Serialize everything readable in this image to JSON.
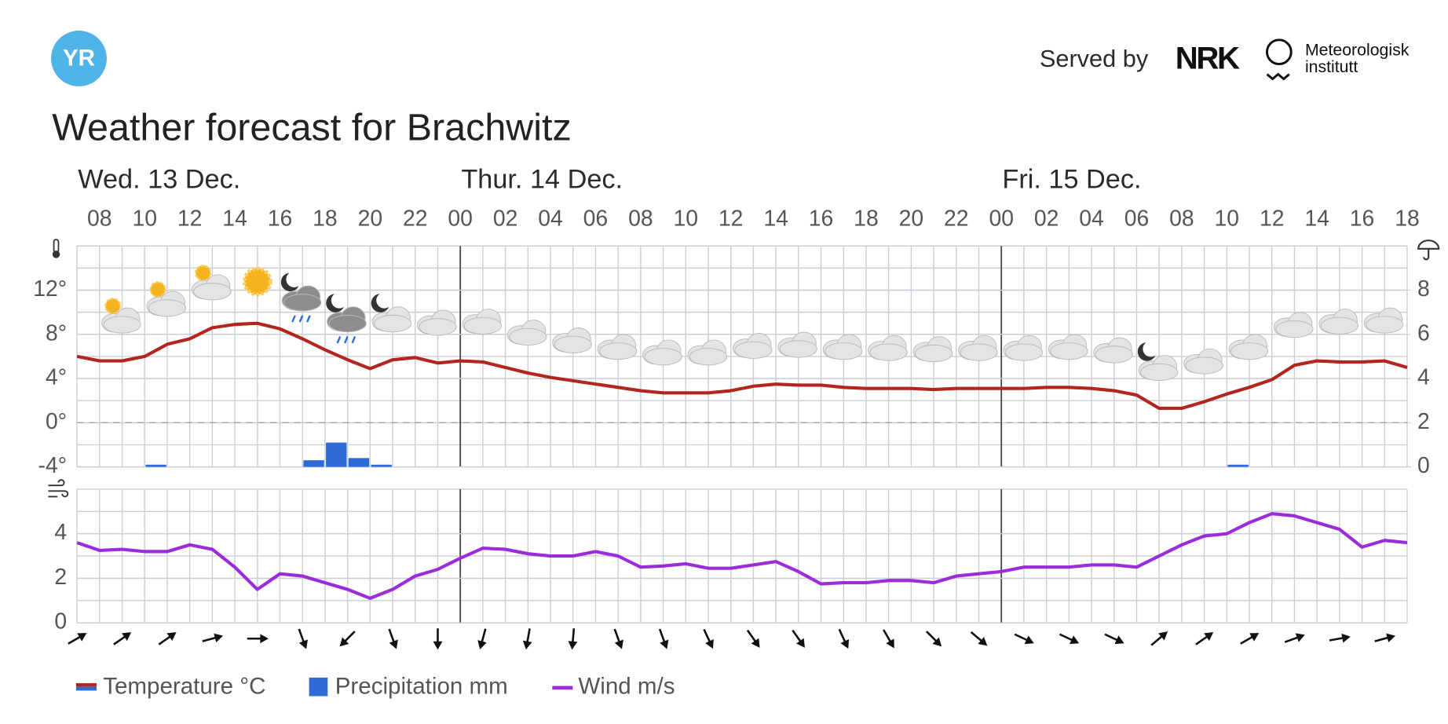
{
  "header": {
    "logo": "YR",
    "served_by": "Served by",
    "partner_1": "NRK",
    "partner_2_line1": "Meteorologisk",
    "partner_2_line2": "institutt"
  },
  "chart_data": {
    "type": "line",
    "title": "Weather forecast for Brachwitz",
    "days": [
      "Wed. 13 Dec.",
      "Thur. 14 Dec.",
      "Fri. 15 Dec."
    ],
    "hour_labels": [
      "08",
      "10",
      "12",
      "14",
      "16",
      "18",
      "20",
      "22",
      "00",
      "02",
      "04",
      "06",
      "08",
      "10",
      "12",
      "14",
      "16",
      "18",
      "20",
      "22",
      "00",
      "02",
      "04",
      "06",
      "08",
      "10",
      "12",
      "14",
      "16",
      "18"
    ],
    "series": [
      {
        "name": "Temperature °C",
        "color": "#b3261e",
        "values": [
          6.0,
          5.6,
          5.6,
          6.0,
          7.1,
          7.6,
          8.6,
          8.9,
          9.0,
          8.5,
          7.6,
          6.6,
          5.7,
          4.9,
          5.7,
          5.9,
          5.4,
          5.6,
          5.5,
          5.0,
          4.5,
          4.1,
          3.8,
          3.5,
          3.2,
          2.9,
          2.7,
          2.7,
          2.7,
          2.9,
          3.3,
          3.5,
          3.4,
          3.4,
          3.2,
          3.1,
          3.1,
          3.1,
          3.0,
          3.1,
          3.1,
          3.1,
          3.1,
          3.2,
          3.2,
          3.1,
          2.9,
          2.5,
          1.3,
          1.3,
          1.9,
          2.6,
          3.2,
          3.9,
          5.2,
          5.6,
          5.5,
          5.5,
          5.6,
          5.0
        ]
      },
      {
        "name": "Precipitation mm",
        "color": "#2f6bd8",
        "axis": "y2",
        "values": [
          0,
          0,
          0,
          0.1,
          0,
          0,
          0,
          0,
          0,
          0,
          0.3,
          1.1,
          0.4,
          0.1,
          0,
          0,
          0,
          0,
          0,
          0,
          0,
          0,
          0,
          0,
          0,
          0,
          0,
          0,
          0,
          0,
          0,
          0,
          0,
          0,
          0,
          0,
          0,
          0,
          0,
          0,
          0,
          0,
          0,
          0,
          0,
          0,
          0,
          0,
          0,
          0,
          0,
          0.1,
          0,
          0,
          0,
          0,
          0,
          0,
          0,
          0
        ]
      },
      {
        "name": "Wind m/s",
        "color": "#9b2bdb",
        "values": [
          3.6,
          3.25,
          3.3,
          3.2,
          3.2,
          3.5,
          3.3,
          2.5,
          1.5,
          2.2,
          2.1,
          1.8,
          1.5,
          1.1,
          1.5,
          2.1,
          2.4,
          2.9,
          3.35,
          3.3,
          3.1,
          3.0,
          3.0,
          3.2,
          3.0,
          2.5,
          2.55,
          2.65,
          2.45,
          2.45,
          2.6,
          2.75,
          2.3,
          1.75,
          1.8,
          1.8,
          1.9,
          1.9,
          1.8,
          2.1,
          2.2,
          2.3,
          2.5,
          2.5,
          2.5,
          2.6,
          2.6,
          2.5,
          3.0,
          3.5,
          3.9,
          4.0,
          4.5,
          4.9,
          4.8,
          4.5,
          4.2,
          3.4,
          3.7,
          3.6
        ]
      }
    ],
    "ylim": [
      -4,
      16
    ],
    "yticks": [
      {
        "value": -4,
        "label": "-4°"
      },
      {
        "value": 0,
        "label": "0°"
      },
      {
        "value": 4,
        "label": "4°"
      },
      {
        "value": 8,
        "label": "8°"
      },
      {
        "value": 12,
        "label": "12°"
      }
    ],
    "y2lim": [
      0,
      10
    ],
    "y2ticks": [
      0,
      2,
      4,
      6,
      8
    ],
    "wind_ylim": [
      0,
      6
    ],
    "wind_yticks": [
      0,
      2,
      4
    ],
    "wind_directions": [
      -30,
      -35,
      -35,
      -15,
      0,
      70,
      135,
      70,
      90,
      105,
      100,
      95,
      70,
      70,
      65,
      55,
      55,
      65,
      60,
      45,
      40,
      25,
      25,
      25,
      -40,
      -35,
      -30,
      -20,
      -10,
      -15
    ]
  }
}
